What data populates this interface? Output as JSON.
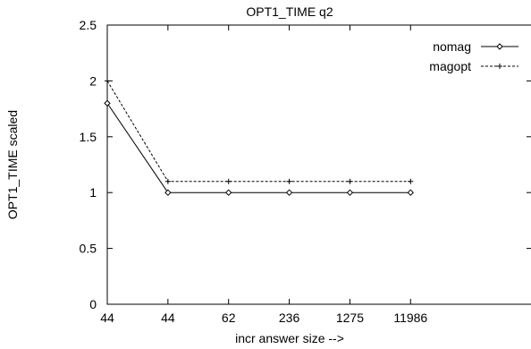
{
  "chart_data": {
    "type": "line",
    "title": "OPT1_TIME q2",
    "xlabel": "incr answer size -->",
    "ylabel": "OPT1_TIME scaled",
    "categories": [
      "44",
      "44",
      "62",
      "236",
      "1275",
      "11986"
    ],
    "x_slot_count": 8,
    "ylim": [
      0,
      2.5
    ],
    "yticks": [
      "0",
      "0.5",
      "1",
      "1.5",
      "2",
      "2.5"
    ],
    "grid": false,
    "legend_position": "top-right",
    "series": [
      {
        "name": "nomag",
        "values": [
          1.8,
          1.0,
          1.0,
          1.0,
          1.0,
          1.0
        ],
        "style": "solid",
        "marker": "diamond",
        "color": "#000000"
      },
      {
        "name": "magopt",
        "values": [
          2.0,
          1.1,
          1.1,
          1.1,
          1.1,
          1.1
        ],
        "style": "dashed",
        "marker": "plus",
        "color": "#000000"
      }
    ]
  }
}
